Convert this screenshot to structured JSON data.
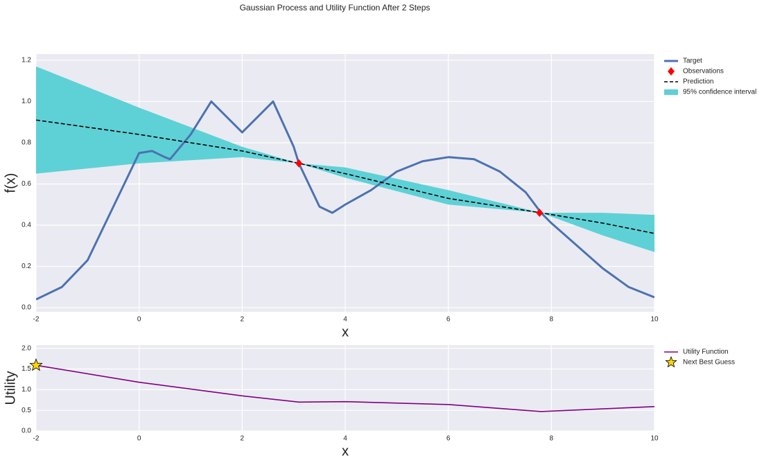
{
  "chart_data": [
    {
      "type": "line",
      "title": "Gaussian Process and Utility Function After 2 Steps",
      "xlabel": "x",
      "ylabel": "f(x)",
      "xlim": [
        -2,
        10
      ],
      "xticks": [
        -2,
        0,
        2,
        4,
        6,
        8,
        10
      ],
      "ylim": [
        -0.02,
        1.23
      ],
      "yticks": [
        {
          "value": 0,
          "label": "0.0"
        },
        0.2,
        0.4,
        0.6,
        0.8,
        {
          "value": 1,
          "label": "1.0"
        },
        1.2
      ],
      "grid": true,
      "legend": "outside right",
      "series": [
        {
          "name": "Target",
          "kind": "line",
          "color": "#4c72b0",
          "x": [
            -2,
            -1.5,
            -1,
            -0.5,
            0,
            0.25,
            0.5,
            0.6,
            1,
            1.4,
            2,
            2.6,
            3,
            3.1,
            3.5,
            3.75,
            4,
            4.5,
            5,
            5.5,
            6,
            6.5,
            7,
            7.5,
            7.8,
            8,
            8.5,
            9,
            9.5,
            10
          ],
          "values": [
            0.04,
            0.1,
            0.23,
            0.49,
            0.75,
            0.76,
            0.73,
            0.72,
            0.84,
            1.0,
            0.85,
            1.0,
            0.78,
            0.7,
            0.49,
            0.46,
            0.5,
            0.57,
            0.66,
            0.71,
            0.73,
            0.72,
            0.66,
            0.56,
            0.46,
            0.41,
            0.3,
            0.19,
            0.1,
            0.05
          ]
        },
        {
          "name": "Observations",
          "kind": "markers",
          "marker": "diamond",
          "color": "#ff0000",
          "x": [
            3.1,
            7.77
          ],
          "values": [
            0.7,
            0.46
          ]
        },
        {
          "name": "Prediction",
          "kind": "dashed",
          "color": "#000000",
          "x": [
            -2,
            0,
            2,
            3.1,
            4,
            6,
            7.8,
            9,
            10
          ],
          "values": [
            0.91,
            0.84,
            0.76,
            0.7,
            0.65,
            0.53,
            0.46,
            0.41,
            0.36
          ]
        },
        {
          "name": "95% confidence interval",
          "kind": "band",
          "color": "#5ed1d6",
          "x": [
            -2,
            0,
            2,
            3.1,
            4,
            6,
            7.8,
            9,
            10
          ],
          "upper": [
            1.17,
            0.97,
            0.78,
            0.7,
            0.68,
            0.57,
            0.46,
            0.46,
            0.45
          ],
          "lower": [
            0.65,
            0.7,
            0.73,
            0.7,
            0.63,
            0.5,
            0.46,
            0.35,
            0.27
          ]
        }
      ]
    },
    {
      "type": "line",
      "xlabel": "x",
      "ylabel": "Utility",
      "xlim": [
        -2,
        10
      ],
      "xticks": [
        -2,
        0,
        2,
        4,
        6,
        8,
        10
      ],
      "ylim": [
        0,
        2.08
      ],
      "yticks": [
        {
          "value": 0,
          "label": "0.0"
        },
        0.5,
        {
          "value": 1,
          "label": "1.0"
        },
        1.5,
        {
          "value": 2,
          "label": "2.0"
        }
      ],
      "grid": true,
      "legend": "outside right",
      "series": [
        {
          "name": "Utility Function",
          "kind": "line",
          "color": "#800080",
          "x": [
            -2,
            0,
            2,
            3.1,
            4,
            6,
            7.8,
            10
          ],
          "values": [
            1.59,
            1.18,
            0.85,
            0.7,
            0.71,
            0.64,
            0.47,
            0.59
          ]
        },
        {
          "name": "Next Best Guess",
          "kind": "markers",
          "marker": "star",
          "color": "#ffd700",
          "x": [
            -2
          ],
          "values": [
            1.59
          ]
        }
      ]
    }
  ]
}
